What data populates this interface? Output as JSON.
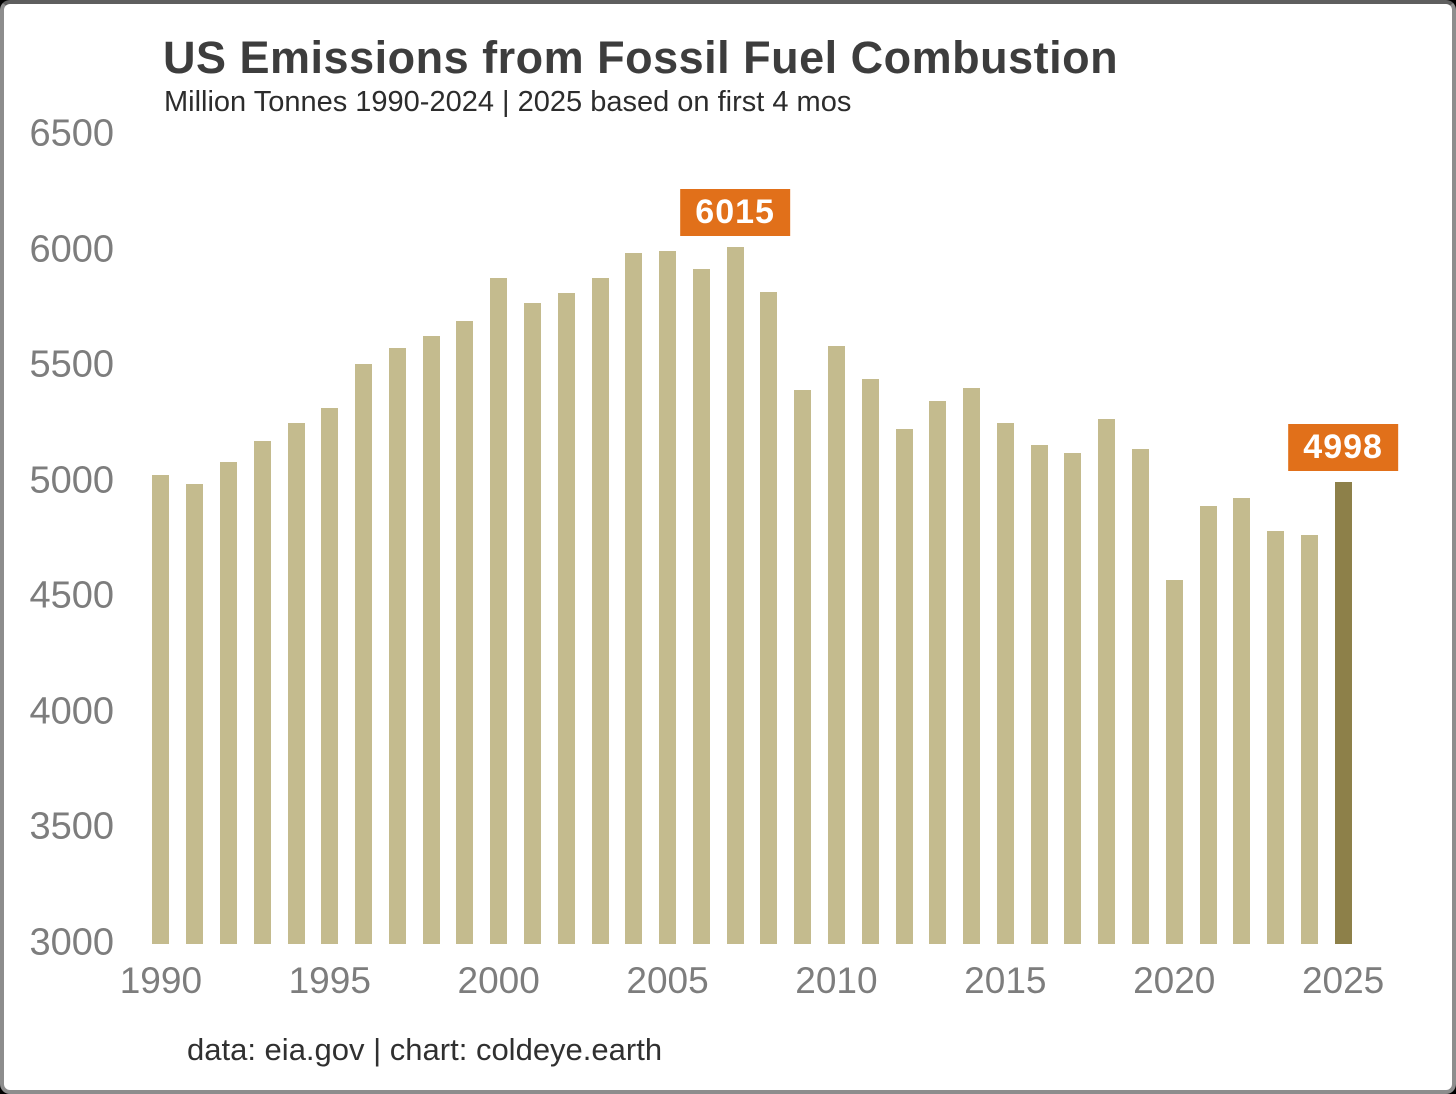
{
  "footer": {
    "credit": "data: eia.gov | chart: coldeye.earth"
  },
  "chart_data": {
    "type": "bar",
    "title": "US Emissions from Fossil Fuel Combustion",
    "subtitle": "Million Tonnes 1990-2024 | 2025 based on first 4 mos",
    "x": [
      1990,
      1991,
      1992,
      1993,
      1994,
      1995,
      1996,
      1997,
      1998,
      1999,
      2000,
      2001,
      2002,
      2003,
      2004,
      2005,
      2006,
      2007,
      2008,
      2009,
      2010,
      2011,
      2012,
      2013,
      2014,
      2015,
      2016,
      2017,
      2018,
      2019,
      2020,
      2021,
      2022,
      2023,
      2024,
      2025
    ],
    "values": [
      5030,
      4990,
      5085,
      5175,
      5255,
      5320,
      5510,
      5580,
      5630,
      5695,
      5880,
      5775,
      5815,
      5880,
      5990,
      6000,
      5920,
      6015,
      5820,
      5395,
      5585,
      5445,
      5230,
      5350,
      5405,
      5255,
      5160,
      5125,
      5270,
      5140,
      4575,
      4895,
      4930,
      4785,
      4770,
      4998
    ],
    "ylim": [
      3000,
      6500
    ],
    "yticks": [
      3000,
      3500,
      4000,
      4500,
      5000,
      5500,
      6000,
      6500
    ],
    "xticks": [
      1990,
      1995,
      2000,
      2005,
      2010,
      2015,
      2020,
      2025
    ],
    "annotations": [
      {
        "x": 2007,
        "label": "6015"
      },
      {
        "x": 2025,
        "label": "4998"
      }
    ],
    "highlight_x": 2025,
    "grid": false,
    "legend": null,
    "colors": {
      "bar": "#c4bb8e",
      "highlight_bar": "#8d8049",
      "annotation_bg": "#e1701a",
      "annotation_text": "#ffffff",
      "axis_text": "#7d7d7d",
      "title_text": "#3d3d3d"
    }
  }
}
